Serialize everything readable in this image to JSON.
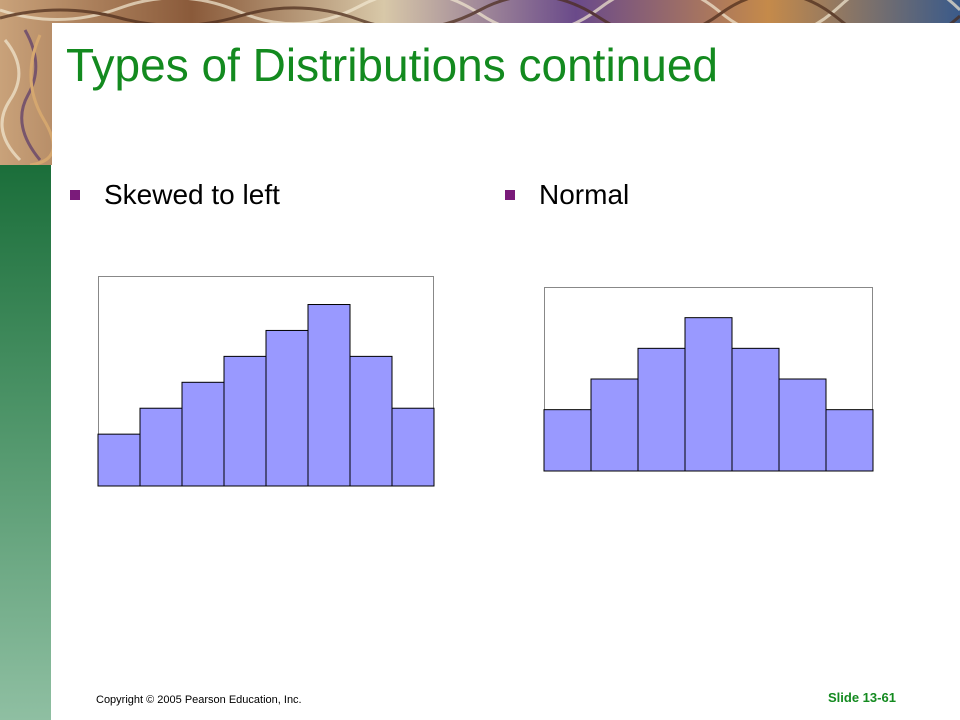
{
  "slide": {
    "title": "Types of Distributions continued",
    "footer_copyright": "Copyright © 2005 Pearson Education, Inc.",
    "footer_slide": "Slide 13-61",
    "colors": {
      "title": "#138a1f",
      "bullet": "#7a1b7a",
      "bar_fill": "#9999ff",
      "left_bar": "#1b6e3a"
    }
  },
  "bullets": [
    {
      "label": "Skewed to left"
    },
    {
      "label": "Normal"
    }
  ],
  "chart_data": [
    {
      "type": "bar",
      "categories": [
        "",
        "",
        "",
        "",
        "",
        "",
        "",
        ""
      ],
      "values": [
        2,
        3,
        4,
        5,
        6,
        7,
        5,
        3
      ],
      "ylim": [
        0,
        8.1
      ],
      "grid": false,
      "bar_color": "#9999ff"
    },
    {
      "type": "bar",
      "categories": [
        "",
        "",
        "",
        "",
        "",
        "",
        ""
      ],
      "values": [
        2,
        3,
        4,
        5,
        4,
        3,
        2
      ],
      "ylim": [
        0,
        6
      ],
      "grid": false,
      "bar_color": "#9999ff"
    }
  ]
}
